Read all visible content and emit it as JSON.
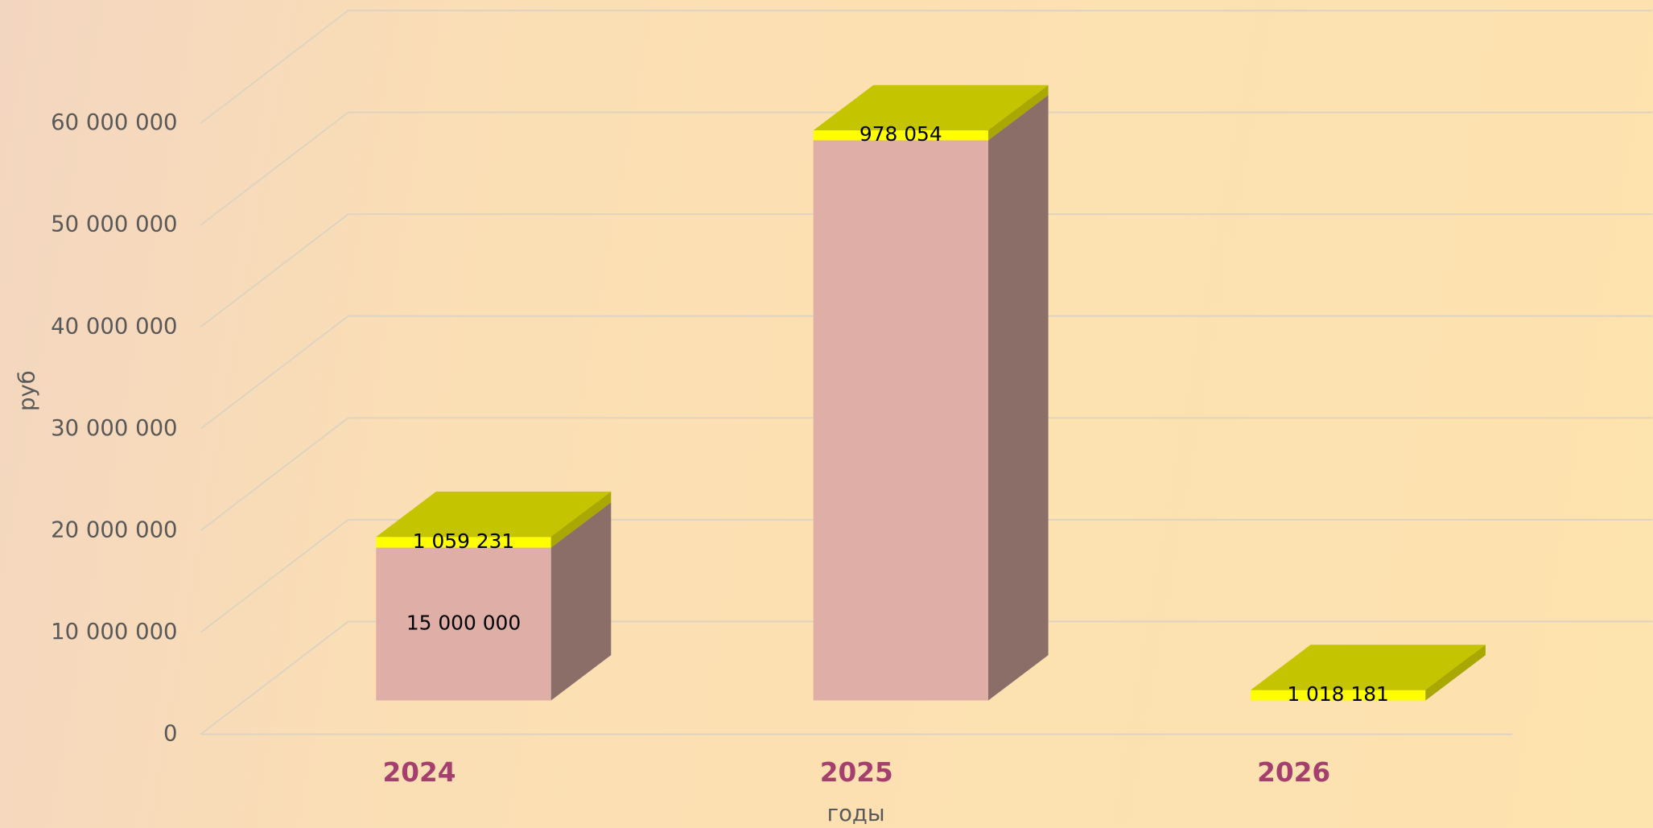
{
  "chart_data": {
    "type": "bar3d_stacked",
    "y_label": "руб",
    "x_label": "годы",
    "categories": [
      "2024",
      "2025",
      "2026"
    ],
    "series": [
      {
        "color": "#dfaea6",
        "values": [
          15000000,
          55000000,
          0
        ],
        "value_labels": [
          "15 000 000",
          null,
          null
        ]
      },
      {
        "color": "#ffff00",
        "values": [
          1059231,
          978054,
          1018181
        ],
        "value_labels": [
          "1 059 231",
          "978 054",
          "1 018 181"
        ]
      }
    ],
    "ylim": [
      0,
      60000000
    ],
    "yticks": [
      0,
      {
        "value": 10000000,
        "label": "10 000 000"
      },
      {
        "value": 20000000,
        "label": "20 000 000"
      },
      {
        "value": 30000000,
        "label": "30 000 000"
      },
      {
        "value": 40000000,
        "label": "40 000 000"
      },
      {
        "value": 50000000,
        "label": "50 000 000"
      },
      {
        "value": 60000000,
        "label": "60 000 000"
      }
    ],
    "grid": true
  }
}
